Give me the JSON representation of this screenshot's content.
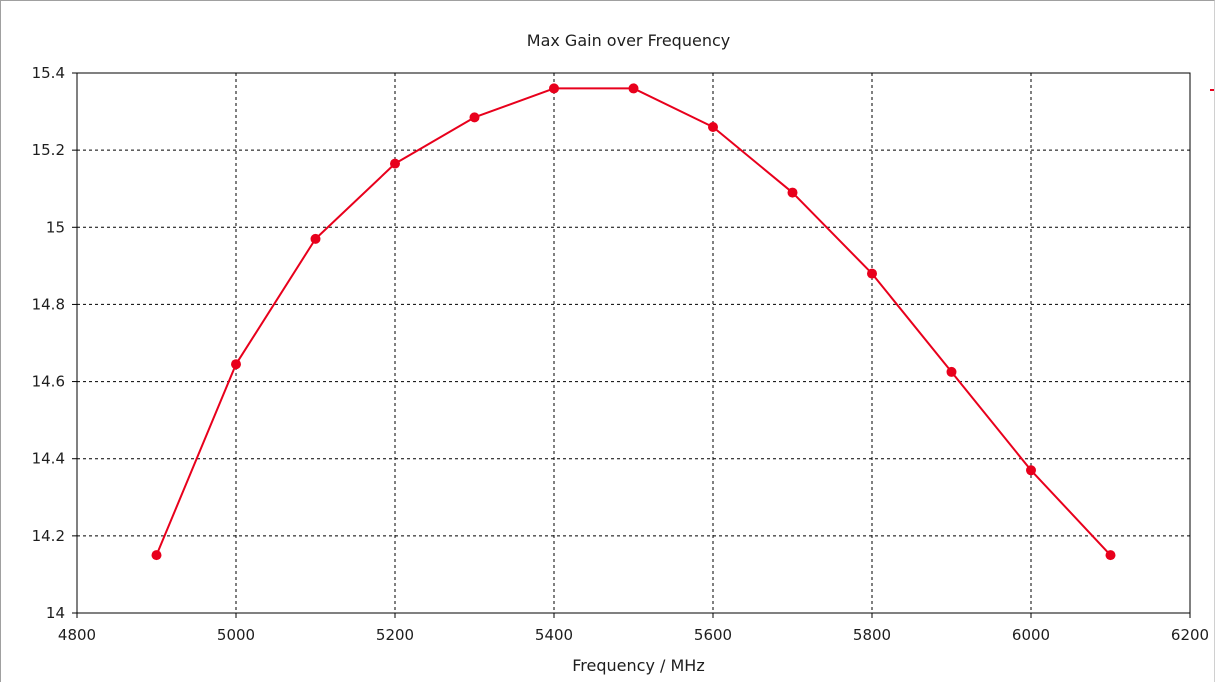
{
  "chart_data": {
    "type": "line",
    "title": "Max Gain over Frequency",
    "xlabel": "Frequency / MHz",
    "ylabel": "",
    "xlim": [
      4800,
      6200
    ],
    "ylim": [
      14,
      15.4
    ],
    "xticks": [
      "4800",
      "5000",
      "5200",
      "5400",
      "5600",
      "5800",
      "6000",
      "6200"
    ],
    "yticks": [
      "14",
      "14.2",
      "14.4",
      "14.6",
      "14.8",
      "15",
      "15.2",
      "15.4"
    ],
    "grid": true,
    "legend_position": "right, mostly cropped",
    "series": [
      {
        "color": "#e8001c",
        "x": [
          4900,
          5000,
          5100,
          5200,
          5300,
          5400,
          5500,
          5600,
          5700,
          5800,
          5900,
          6000,
          6100
        ],
        "y": [
          14.15,
          14.645,
          14.97,
          15.165,
          15.285,
          15.36,
          15.36,
          15.26,
          15.09,
          14.88,
          14.625,
          14.37,
          14.15
        ]
      }
    ]
  }
}
